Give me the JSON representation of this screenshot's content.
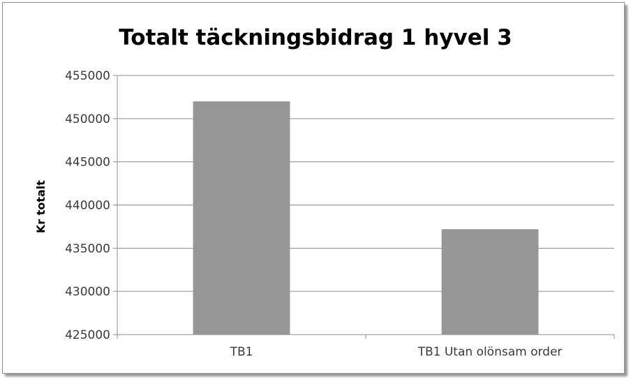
{
  "chart_data": {
    "type": "bar",
    "title": "Totalt täckningsbidrag 1 hyvel 3",
    "xlabel": "",
    "ylabel": "Kr totalt",
    "categories": [
      "TB1",
      "TB1 Utan olönsam order"
    ],
    "values": [
      452000,
      437200
    ],
    "ylim": [
      425000,
      455000
    ],
    "yticks": [
      425000,
      430000,
      435000,
      440000,
      445000,
      450000,
      455000
    ],
    "ytick_labels": [
      "425000",
      "430000",
      "435000",
      "440000",
      "445000",
      "450000",
      "455000"
    ],
    "grid": true,
    "legend": "none",
    "colors": {
      "bar": "#969696",
      "grid": "#8c8c8c",
      "axis": "#8c8c8c"
    }
  }
}
